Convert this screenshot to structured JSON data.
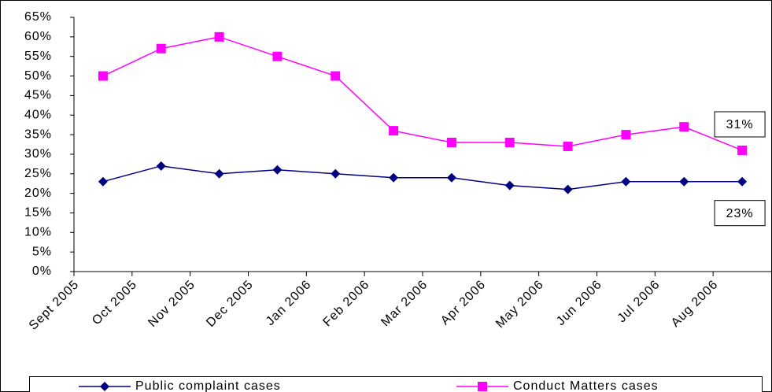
{
  "chart_data": {
    "type": "line",
    "categories": [
      "Sept 2005",
      "Oct 2005",
      "Nov 2005",
      "Dec 2005",
      "Jan 2006",
      "Feb 2006",
      "Mar 2006",
      "Apr 2006",
      "May 2006",
      "Jun 2006",
      "Jul 2006",
      "Aug 2006"
    ],
    "series": [
      {
        "name": "Public complaint cases",
        "color": "#000080",
        "marker": "diamond",
        "values": [
          23,
          27,
          25,
          26,
          25,
          24,
          24,
          22,
          21,
          23,
          23,
          23
        ],
        "value_labels": [
          null,
          null,
          null,
          null,
          null,
          null,
          null,
          null,
          null,
          null,
          null,
          "23%"
        ]
      },
      {
        "name": "Conduct Matters cases",
        "color": "#ff00ff",
        "marker": "square",
        "values": [
          50,
          57,
          60,
          55,
          50,
          36,
          33,
          33,
          32,
          35,
          37,
          31
        ],
        "value_labels": [
          null,
          null,
          null,
          null,
          null,
          null,
          null,
          null,
          null,
          null,
          null,
          "31%"
        ]
      }
    ],
    "ylim": [
      0,
      65
    ],
    "yticks": [
      {
        "value": 0,
        "label": "0%"
      },
      {
        "value": 5,
        "label": "5%"
      },
      {
        "value": 10,
        "label": "10%"
      },
      {
        "value": 15,
        "label": "15%"
      },
      {
        "value": 20,
        "label": "20%"
      },
      {
        "value": 25,
        "label": "25%"
      },
      {
        "value": 30,
        "label": "30%"
      },
      {
        "value": 35,
        "label": "35%"
      },
      {
        "value": 40,
        "label": "40%"
      },
      {
        "value": 45,
        "label": "45%"
      },
      {
        "value": 50,
        "label": "50%"
      },
      {
        "value": 55,
        "label": "55%"
      },
      {
        "value": 60,
        "label": "60%"
      },
      {
        "value": 65,
        "label": "65%"
      }
    ],
    "grid": false,
    "legend": "bottom"
  }
}
